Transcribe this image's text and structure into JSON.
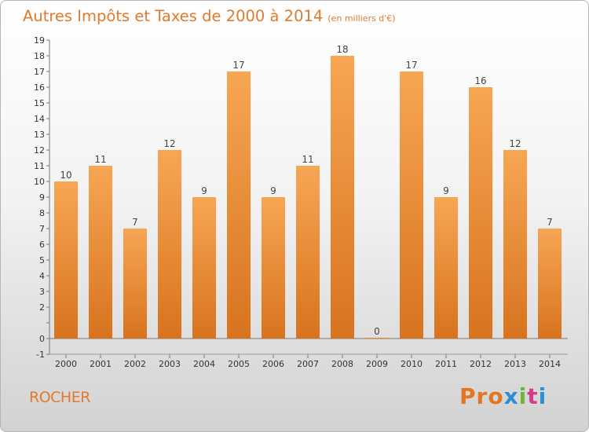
{
  "title": "Autres Impôts et Taxes de 2000 à 2014",
  "unit": "(en milliers d'€)",
  "commune": "ROCHER",
  "logo": {
    "p1": "Pro",
    "p2": "x",
    "p3": "i",
    "p4": "t",
    "p5": "i"
  },
  "colors": {
    "bar_top": "#f7a654",
    "bar_bottom": "#d8731f",
    "text_accent": "#e07a2e"
  },
  "chart_data": {
    "type": "bar",
    "categories": [
      "2000",
      "2001",
      "2002",
      "2003",
      "2004",
      "2005",
      "2006",
      "2007",
      "2008",
      "2009",
      "2010",
      "2011",
      "2012",
      "2013",
      "2014"
    ],
    "values": [
      10,
      11,
      7,
      12,
      9,
      17,
      9,
      11,
      18,
      0,
      17,
      9,
      16,
      12,
      7
    ],
    "data_labels": [
      "10",
      "11",
      "7",
      "12",
      "9",
      "17",
      "9",
      "11",
      "18",
      "0",
      "17",
      "9",
      "16",
      "12",
      "7"
    ],
    "ylim": [
      -1,
      19
    ],
    "yticks": [
      -1,
      0,
      1,
      2,
      3,
      4,
      5,
      6,
      7,
      8,
      9,
      10,
      11,
      12,
      13,
      14,
      15,
      16,
      17,
      18,
      19
    ],
    "ytick_labels": [
      "-1",
      "0",
      "",
      "2",
      "3",
      "4",
      "5",
      "6",
      "7",
      "8",
      "9",
      "10",
      "11",
      "12",
      "13",
      "14",
      "15",
      "16",
      "17",
      "18",
      "19"
    ],
    "xlabel": "",
    "ylabel": "",
    "grid": false,
    "legend": false
  }
}
